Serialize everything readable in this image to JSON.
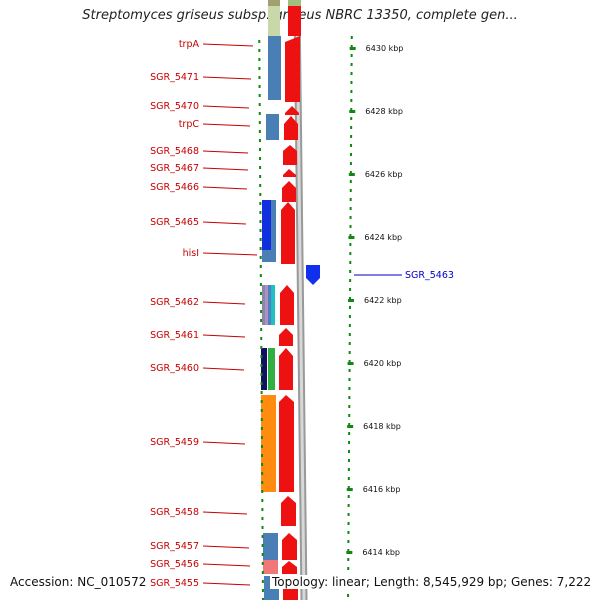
{
  "title": "Streptomyces griseus subsp. griseus NBRC 13350, complete gen...",
  "accession": "Accession: NC_010572",
  "summary": "Topology: linear; Length: 8,545,929 bp; Genes: 7,222",
  "colors": {
    "label_left": "#c80000",
    "label_right": "#0000c8",
    "gene_red": "#ee1111",
    "tick_green": "#118811",
    "backbone": "#888888"
  },
  "scale": {
    "unit": "kbp",
    "ticks": [
      "6430 kbp",
      "6428 kbp",
      "6426 kbp",
      "6424 kbp",
      "6422 kbp",
      "6420 kbp",
      "6418 kbp",
      "6416 kbp",
      "6414 kbp"
    ]
  },
  "genes_left": [
    {
      "name": "trpA"
    },
    {
      "name": "SGR_5471"
    },
    {
      "name": "SGR_5470"
    },
    {
      "name": "trpC"
    },
    {
      "name": "SGR_5468"
    },
    {
      "name": "SGR_5467"
    },
    {
      "name": "SGR_5466"
    },
    {
      "name": "SGR_5465"
    },
    {
      "name": "hisI"
    },
    {
      "name": "SGR_5462"
    },
    {
      "name": "SGR_5461"
    },
    {
      "name": "SGR_5460"
    },
    {
      "name": "SGR_5459"
    },
    {
      "name": "SGR_5458"
    },
    {
      "name": "SGR_5457"
    },
    {
      "name": "SGR_5456"
    },
    {
      "name": "SGR_5455"
    }
  ],
  "genes_right": [
    {
      "name": "SGR_5463"
    }
  ]
}
